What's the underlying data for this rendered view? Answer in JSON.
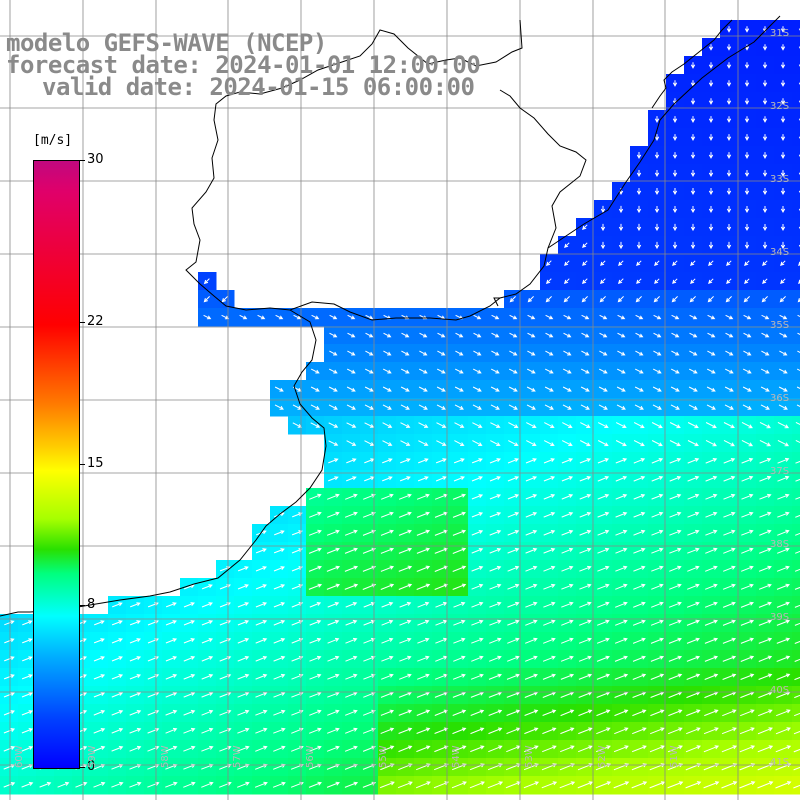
{
  "title": {
    "line1": "modelo GEFS-WAVE (NCEP)",
    "line2": "forecast date: 2024-01-01 12:00:00",
    "line3": "valid date: 2024-01-15 06:00:00"
  },
  "colorbar": {
    "unit": "[m/s]",
    "ticks": [
      {
        "value": 30,
        "label": "30"
      },
      {
        "value": 22,
        "label": "22"
      },
      {
        "value": 15,
        "label": "15"
      },
      {
        "value": 8,
        "label": "8"
      },
      {
        "value": 0,
        "label": "0"
      }
    ],
    "range": [
      0,
      30
    ]
  },
  "map": {
    "lat_labels": [
      "31S",
      "32S",
      "33S",
      "34S",
      "35S",
      "36S",
      "37S",
      "38S",
      "39S",
      "40S",
      "41S"
    ],
    "lon_labels": [
      "60W",
      "59W",
      "58W",
      "57W",
      "56W",
      "55W",
      "54W",
      "53W",
      "52W",
      "51W"
    ],
    "lon_range": [
      -61,
      -50
    ],
    "lat_range": [
      -31,
      -41
    ],
    "land_color": "#ffffff",
    "grid_color": "#888888",
    "coast_color": "#000000",
    "arrow_color": "#ffffff"
  }
}
